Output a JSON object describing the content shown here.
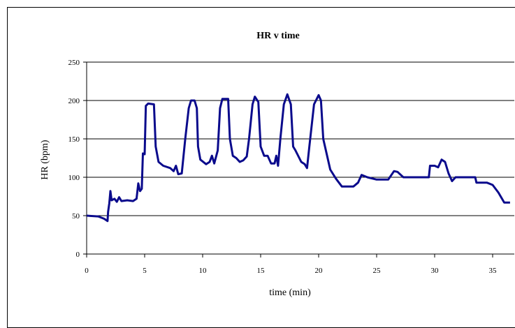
{
  "chart_data": {
    "type": "line",
    "title": "HR v time",
    "xlabel": "time (min)",
    "ylabel": "HR (bpm)",
    "xlim": [
      0,
      36.5
    ],
    "ylim": [
      0,
      250
    ],
    "x_ticks": [
      0,
      5,
      10,
      15,
      20,
      25,
      30,
      35
    ],
    "y_ticks": [
      0,
      50,
      100,
      150,
      200,
      250
    ],
    "grid": true,
    "legend": "none",
    "colors": {
      "line": "#0a0a8c",
      "grid": "#000000"
    },
    "series": [
      {
        "points": [
          [
            0,
            50
          ],
          [
            1.0,
            49
          ],
          [
            1.5,
            46
          ],
          [
            1.8,
            43
          ],
          [
            1.85,
            55
          ],
          [
            1.95,
            66
          ],
          [
            2.05,
            82
          ],
          [
            2.15,
            70
          ],
          [
            2.4,
            72
          ],
          [
            2.6,
            68
          ],
          [
            2.8,
            74
          ],
          [
            3.0,
            69
          ],
          [
            3.5,
            70
          ],
          [
            4.0,
            69
          ],
          [
            4.3,
            72
          ],
          [
            4.45,
            92
          ],
          [
            4.6,
            82
          ],
          [
            4.75,
            85
          ],
          [
            4.85,
            131
          ],
          [
            5.0,
            130
          ],
          [
            5.1,
            193
          ],
          [
            5.3,
            196
          ],
          [
            5.8,
            195
          ],
          [
            5.95,
            140
          ],
          [
            6.2,
            120
          ],
          [
            6.6,
            115
          ],
          [
            7.2,
            112
          ],
          [
            7.5,
            108
          ],
          [
            7.7,
            115
          ],
          [
            7.9,
            104
          ],
          [
            8.2,
            105
          ],
          [
            8.5,
            150
          ],
          [
            8.8,
            190
          ],
          [
            9.0,
            200
          ],
          [
            9.3,
            200
          ],
          [
            9.5,
            190
          ],
          [
            9.6,
            140
          ],
          [
            9.8,
            123
          ],
          [
            10.3,
            117
          ],
          [
            10.6,
            120
          ],
          [
            10.8,
            128
          ],
          [
            11.0,
            118
          ],
          [
            11.3,
            135
          ],
          [
            11.5,
            190
          ],
          [
            11.7,
            202
          ],
          [
            12.2,
            202
          ],
          [
            12.35,
            150
          ],
          [
            12.6,
            128
          ],
          [
            12.9,
            125
          ],
          [
            13.2,
            120
          ],
          [
            13.5,
            122
          ],
          [
            13.8,
            127
          ],
          [
            14.0,
            150
          ],
          [
            14.3,
            195
          ],
          [
            14.5,
            205
          ],
          [
            14.8,
            198
          ],
          [
            15.0,
            140
          ],
          [
            15.3,
            128
          ],
          [
            15.6,
            128
          ],
          [
            15.9,
            118
          ],
          [
            16.2,
            118
          ],
          [
            16.35,
            128
          ],
          [
            16.5,
            115
          ],
          [
            16.7,
            150
          ],
          [
            17.0,
            195
          ],
          [
            17.3,
            208
          ],
          [
            17.6,
            195
          ],
          [
            17.8,
            140
          ],
          [
            18.0,
            135
          ],
          [
            18.5,
            120
          ],
          [
            18.8,
            117
          ],
          [
            19.0,
            112
          ],
          [
            19.2,
            140
          ],
          [
            19.6,
            195
          ],
          [
            20.0,
            207
          ],
          [
            20.2,
            200
          ],
          [
            20.4,
            150
          ],
          [
            21.0,
            110
          ],
          [
            21.5,
            98
          ],
          [
            22.0,
            88
          ],
          [
            23.0,
            88
          ],
          [
            23.4,
            93
          ],
          [
            23.7,
            103
          ],
          [
            24.2,
            100
          ],
          [
            25.0,
            97
          ],
          [
            26.0,
            97
          ],
          [
            26.5,
            108
          ],
          [
            26.8,
            107
          ],
          [
            27.3,
            100
          ],
          [
            28.5,
            100
          ],
          [
            29.5,
            100
          ],
          [
            29.6,
            115
          ],
          [
            30.0,
            115
          ],
          [
            30.3,
            113
          ],
          [
            30.6,
            123
          ],
          [
            30.9,
            120
          ],
          [
            31.2,
            105
          ],
          [
            31.5,
            95
          ],
          [
            31.8,
            100
          ],
          [
            33.0,
            100
          ],
          [
            33.5,
            100
          ],
          [
            33.6,
            93
          ],
          [
            34.5,
            93
          ],
          [
            35.0,
            90
          ],
          [
            35.5,
            80
          ],
          [
            36.0,
            67
          ],
          [
            36.5,
            67
          ]
        ]
      }
    ]
  }
}
